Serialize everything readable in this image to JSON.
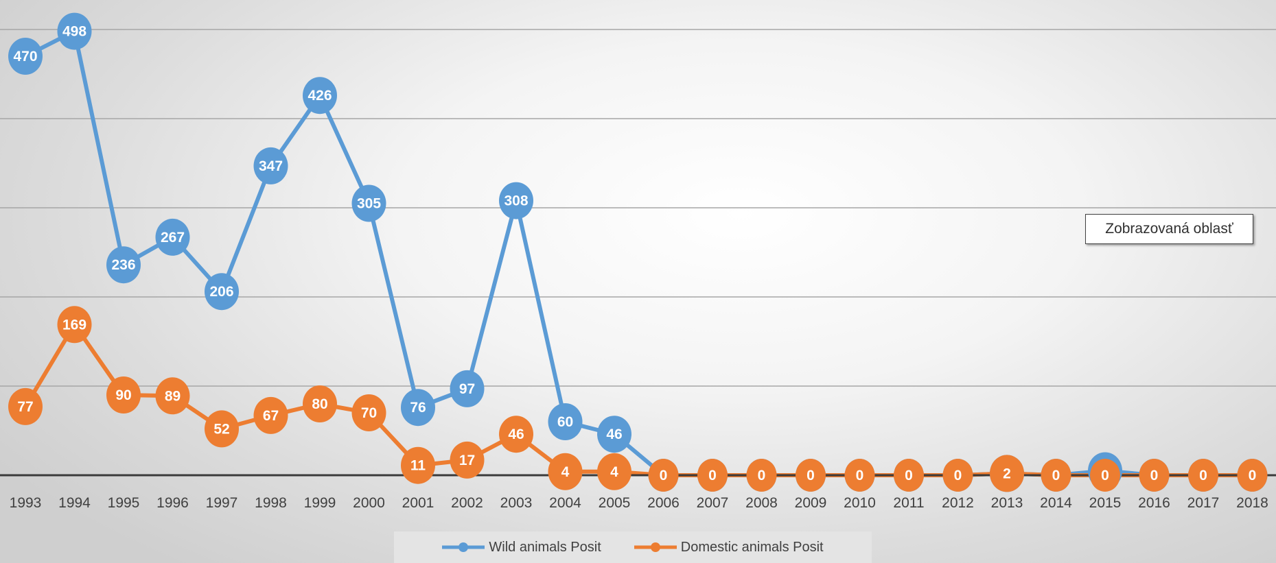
{
  "chart_data": {
    "type": "line",
    "categories": [
      "1993",
      "1994",
      "1995",
      "1996",
      "1997",
      "1998",
      "1999",
      "2000",
      "2001",
      "2002",
      "2003",
      "2004",
      "2005",
      "2006",
      "2007",
      "2008",
      "2009",
      "2010",
      "2011",
      "2012",
      "2013",
      "2014",
      "2015",
      "2016",
      "2017",
      "2018"
    ],
    "series": [
      {
        "name": "Wild animals Posit",
        "color": "#5b9bd5",
        "values": [
          470,
          498,
          236,
          267,
          206,
          347,
          426,
          305,
          76,
          97,
          308,
          60,
          46,
          0,
          0,
          0,
          0,
          0,
          0,
          0,
          2,
          0,
          5,
          0,
          0,
          0
        ]
      },
      {
        "name": "Domestic animals Posit",
        "color": "#ed7d31",
        "values": [
          77,
          169,
          90,
          89,
          52,
          67,
          80,
          70,
          11,
          17,
          46,
          4,
          4,
          0,
          0,
          0,
          0,
          0,
          0,
          0,
          2,
          0,
          0,
          0,
          0,
          0
        ]
      }
    ],
    "ylim": [
      0,
      500
    ],
    "grid": true,
    "legend": "bottom",
    "xlabel": "",
    "ylabel": "",
    "title": ""
  },
  "tooltip": "Zobrazovaná oblasť"
}
